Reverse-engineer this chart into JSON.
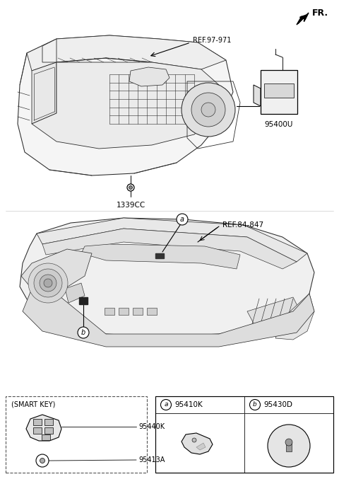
{
  "bg_color": "#ffffff",
  "fig_width": 4.8,
  "fig_height": 6.84,
  "dpi": 100,
  "fr_label": "FR.",
  "ref_97_971": "REF.97-971",
  "ref_84_847": "REF.84-847",
  "part_95400U": "95400U",
  "part_1339CC": "1339CC",
  "part_95410K": "95410K",
  "part_95430D": "95430D",
  "part_95440K": "95440K",
  "part_95413A": "95413A",
  "smart_key_label": "(SMART KEY)",
  "label_a": "a",
  "label_b": "b",
  "unit_color": "#2a2a2a",
  "line_width": 0.75
}
